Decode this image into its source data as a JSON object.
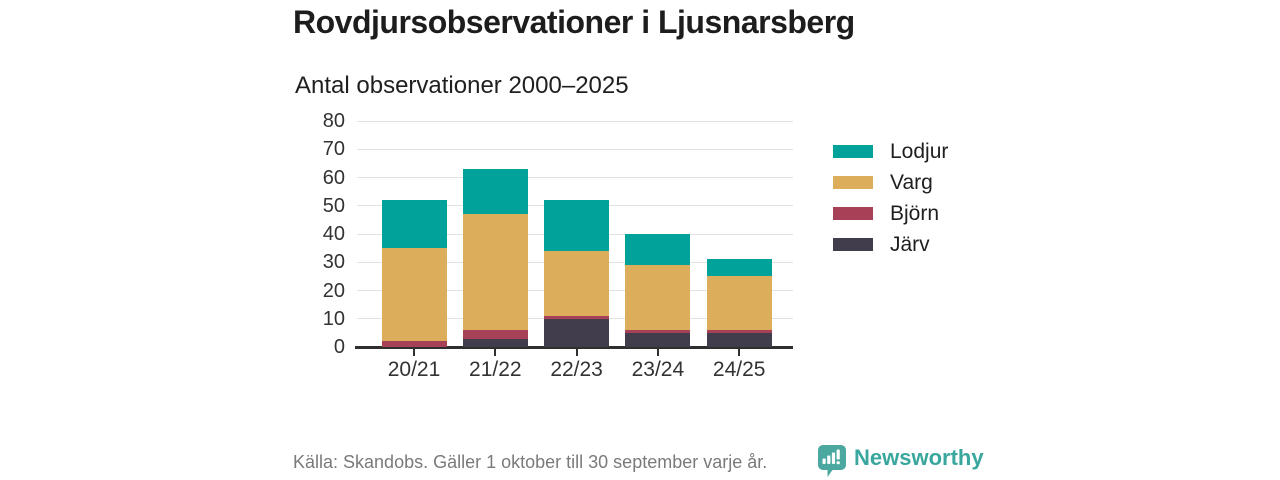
{
  "header": {
    "title": "Rovdjursobservationer i Ljusnarsberg",
    "subtitle": "Antal observationer 2000–2025"
  },
  "chart_data": {
    "type": "bar",
    "stacked": true,
    "title": "Rovdjursobservationer i Ljusnarsberg",
    "subtitle": "Antal observationer 2000–2025",
    "categories": [
      "20/21",
      "21/22",
      "22/23",
      "23/24",
      "24/25"
    ],
    "series": [
      {
        "name": "Järv",
        "color": "#413d4c",
        "values": [
          0,
          3,
          10,
          5,
          5
        ]
      },
      {
        "name": "Björn",
        "color": "#a74158",
        "values": [
          2,
          3,
          1,
          1,
          1
        ]
      },
      {
        "name": "Varg",
        "color": "#dcad5a",
        "values": [
          33,
          41,
          23,
          23,
          19
        ]
      },
      {
        "name": "Lodjur",
        "color": "#00a29a",
        "values": [
          17,
          16,
          18,
          11,
          6
        ]
      }
    ],
    "totals": [
      52,
      63,
      52,
      40,
      31
    ],
    "xlabel": "",
    "ylabel": "",
    "ylim": [
      0,
      80
    ],
    "yticks": [
      0,
      10,
      20,
      30,
      40,
      50,
      60,
      70,
      80
    ],
    "grid": true,
    "legend_position": "right"
  },
  "legend": {
    "items": [
      {
        "label": "Lodjur",
        "color": "#00a29a"
      },
      {
        "label": "Varg",
        "color": "#dcad5a"
      },
      {
        "label": "Björn",
        "color": "#a74158"
      },
      {
        "label": "Järv",
        "color": "#413d4c"
      }
    ]
  },
  "footer": {
    "source": "Källa: Skandobs. Gäller 1 oktober till 30 september varje år.",
    "brand": "Newsworthy",
    "brand_color": "#3aa79e"
  }
}
